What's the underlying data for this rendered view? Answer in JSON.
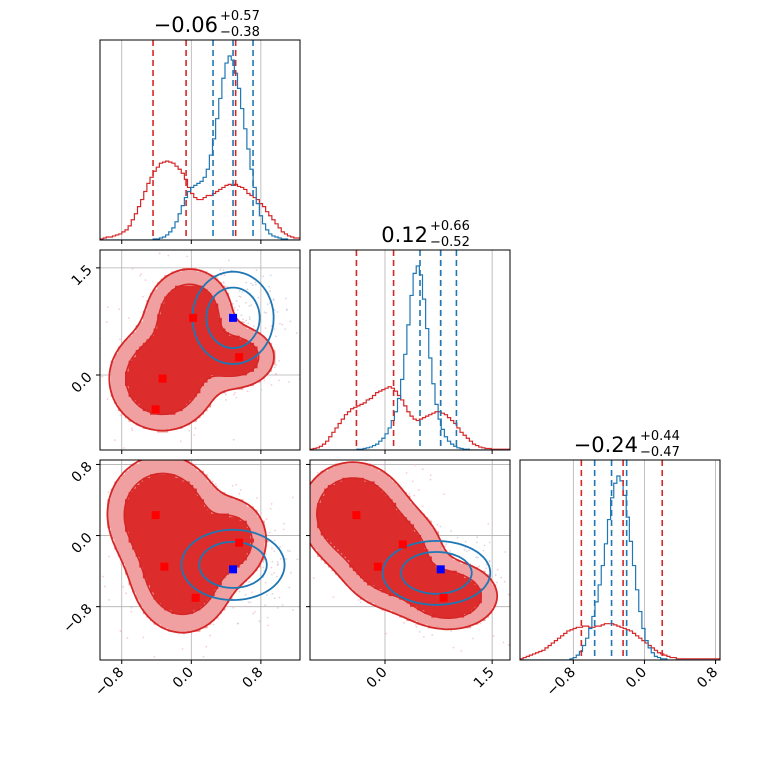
{
  "chart_data": {
    "type": "corner",
    "panels_per_side": 3,
    "grid": true,
    "colors": {
      "red": "#d62728",
      "blue": "#1f77b4",
      "red_fill_outer": "#f0a0a0",
      "red_fill_inner": "#dd2c2c",
      "marker_blue": "#0000ff",
      "marker_red": "#ff0000",
      "frame": "#000000"
    },
    "parameters": [
      {
        "range": [
          -1.05,
          1.25
        ],
        "ticks": [
          "−0.8",
          "0.0",
          "0.8"
        ],
        "tick_values": [
          -0.8,
          0.0,
          0.8
        ],
        "title": {
          "main": "−0.06",
          "sup": "+0.57",
          "sub": "−0.38"
        },
        "quantiles_red": [
          -0.44,
          -0.06,
          0.51
        ],
        "quantiles_blue": [
          0.25,
          0.48,
          0.71
        ]
      },
      {
        "range": [
          -1.05,
          1.75
        ],
        "ticks": [
          "0.0",
          "1.5"
        ],
        "tick_values": [
          0.0,
          1.5
        ],
        "left_ticks": [
          "1.5",
          "0.0"
        ],
        "left_tick_values": [
          1.5,
          0.0
        ],
        "title": {
          "main": "0.12",
          "sup": "+0.66",
          "sub": "−0.52"
        },
        "quantiles_red": [
          -0.4,
          0.12,
          0.78
        ],
        "quantiles_blue": [
          0.49,
          0.78,
          1.0
        ]
      },
      {
        "range": [
          -1.4,
          0.85
        ],
        "ticks": [
          "−0.8",
          "0.0",
          "0.8"
        ],
        "tick_values": [
          -0.8,
          0.0,
          0.8
        ],
        "left_ticks": [
          "0.8",
          "0.0",
          "−0.8"
        ],
        "left_tick_values": [
          0.8,
          0.0,
          -0.8
        ],
        "title": {
          "main": "−0.24",
          "sup": "+0.44",
          "sub": "−0.47"
        },
        "quantiles_red": [
          -0.71,
          -0.24,
          0.2
        ],
        "quantiles_blue": [
          -0.56,
          -0.37,
          -0.2
        ]
      }
    ],
    "marginals": [
      {
        "red": {
          "bins": [
            -1.05,
            1.25
          ],
          "density": [
            1,
            2,
            3,
            3,
            4,
            5,
            6,
            8,
            10,
            14,
            20,
            26,
            33,
            40,
            48,
            56,
            62,
            68,
            72,
            76,
            77,
            78,
            77,
            76,
            73,
            70,
            66,
            60,
            52,
            46,
            42,
            40,
            40,
            42,
            44,
            44,
            46,
            48,
            50,
            52,
            54,
            55,
            54,
            55,
            53,
            52,
            50,
            46,
            44,
            42,
            40,
            36,
            33,
            28,
            24,
            20,
            16,
            12,
            8,
            6,
            4,
            3,
            2,
            2
          ]
        },
        "blue": {
          "bins": [
            -1.05,
            1.25
          ],
          "density": [
            0,
            0,
            0,
            0,
            0,
            0,
            0,
            0,
            0,
            0,
            0,
            0,
            0,
            0,
            0,
            0,
            0,
            1,
            1,
            2,
            3,
            5,
            8,
            12,
            18,
            26,
            34,
            42,
            48,
            52,
            54,
            56,
            58,
            62,
            70,
            84,
            100,
            120,
            140,
            160,
            175,
            182,
            178,
            165,
            150,
            130,
            110,
            90,
            70,
            52,
            36,
            24,
            16,
            10,
            6,
            4,
            3,
            2,
            1,
            1,
            0,
            0,
            0,
            0
          ]
        }
      },
      {
        "red": {
          "bins": [
            -1.05,
            1.75
          ],
          "density": [
            1,
            2,
            3,
            5,
            8,
            12,
            18,
            24,
            30,
            36,
            42,
            48,
            52,
            56,
            58,
            60,
            62,
            64,
            68,
            70,
            74,
            78,
            80,
            82,
            84,
            86,
            84,
            80,
            74,
            68,
            60,
            52,
            46,
            42,
            40,
            42,
            44,
            46,
            48,
            50,
            52,
            52,
            50,
            48,
            44,
            40,
            36,
            30,
            24,
            20,
            16,
            12,
            8,
            6,
            4,
            3,
            2,
            2,
            1,
            1,
            1,
            1,
            1,
            1
          ]
        },
        "blue": {
          "bins": [
            -1.05,
            1.75
          ],
          "density": [
            0,
            0,
            0,
            0,
            0,
            0,
            0,
            0,
            0,
            0,
            0,
            0,
            0,
            0,
            0,
            1,
            1,
            2,
            3,
            4,
            6,
            8,
            12,
            16,
            22,
            30,
            40,
            52,
            70,
            96,
            130,
            170,
            210,
            240,
            250,
            238,
            205,
            165,
            125,
            90,
            62,
            42,
            28,
            18,
            12,
            8,
            5,
            3,
            2,
            1,
            1,
            0,
            0,
            0,
            0,
            0,
            0,
            0,
            0,
            0,
            0,
            0,
            0,
            0
          ]
        }
      },
      {
        "red": {
          "bins": [
            -1.4,
            0.85
          ],
          "density": [
            1,
            2,
            3,
            4,
            5,
            6,
            7,
            8,
            10,
            12,
            14,
            16,
            18,
            20,
            22,
            24,
            25,
            26,
            27,
            27,
            28,
            28,
            27,
            27,
            28,
            28,
            29,
            30,
            30,
            30,
            29,
            28,
            27,
            26,
            25,
            24,
            22,
            20,
            18,
            16,
            14,
            12,
            10,
            8,
            6,
            5,
            4,
            3,
            2,
            2,
            1,
            1,
            1,
            1,
            1,
            1,
            1,
            1,
            1,
            1,
            1,
            1,
            1,
            1
          ]
        },
        "blue": {
          "bins": [
            -1.4,
            0.85
          ],
          "density": [
            0,
            0,
            0,
            0,
            0,
            0,
            0,
            0,
            0,
            0,
            0,
            0,
            0,
            0,
            0,
            0,
            1,
            2,
            4,
            7,
            12,
            18,
            26,
            36,
            48,
            62,
            78,
            96,
            116,
            134,
            146,
            152,
            148,
            136,
            118,
            98,
            78,
            58,
            40,
            26,
            16,
            10,
            6,
            3,
            2,
            1,
            1,
            0,
            0,
            0,
            0,
            0,
            0,
            0,
            0,
            0,
            0,
            0,
            0,
            0,
            0,
            0,
            0,
            0
          ]
        }
      }
    ],
    "joint": [
      {
        "x_param": 0,
        "y_param": 1,
        "red_modes": [
          {
            "x": -0.33,
            "y": -0.05,
            "sx": 0.32,
            "sy": 0.38,
            "w": 1.0
          },
          {
            "x": -0.02,
            "y": 0.85,
            "sx": 0.26,
            "sy": 0.34,
            "w": 0.9
          },
          {
            "x": 0.52,
            "y": 0.25,
            "sx": 0.25,
            "sy": 0.24,
            "w": 0.7
          }
        ],
        "blue_modes": [
          {
            "x": 0.48,
            "y": 0.8,
            "sx": 0.26,
            "sy": 0.36,
            "w": 1.0
          }
        ],
        "blue_markers": [
          {
            "x": 0.48,
            "y": 0.8
          }
        ],
        "red_markers": [
          {
            "x": -0.33,
            "y": -0.05
          },
          {
            "x": -0.41,
            "y": -0.48
          },
          {
            "x": 0.02,
            "y": 0.8
          },
          {
            "x": 0.55,
            "y": 0.25
          }
        ]
      },
      {
        "x_param": 0,
        "y_param": 2,
        "red_modes": [
          {
            "x": -0.33,
            "y": 0.25,
            "sx": 0.33,
            "sy": 0.34,
            "w": 1.0
          },
          {
            "x": -0.1,
            "y": -0.45,
            "sx": 0.3,
            "sy": 0.34,
            "w": 0.95
          },
          {
            "x": 0.5,
            "y": -0.05,
            "sx": 0.22,
            "sy": 0.26,
            "w": 0.6
          }
        ],
        "blue_modes": [
          {
            "x": 0.48,
            "y": -0.33,
            "sx": 0.33,
            "sy": 0.22,
            "w": 1.0
          }
        ],
        "blue_markers": [
          {
            "x": 0.48,
            "y": -0.38
          }
        ],
        "red_markers": [
          {
            "x": -0.41,
            "y": 0.23
          },
          {
            "x": -0.31,
            "y": -0.35
          },
          {
            "x": 0.05,
            "y": -0.7
          },
          {
            "x": 0.55,
            "y": -0.08
          }
        ]
      },
      {
        "x_param": 1,
        "y_param": 2,
        "red_modes": [
          {
            "x": -0.45,
            "y": 0.25,
            "sx": 0.38,
            "sy": 0.3,
            "w": 1.0
          },
          {
            "x": 0.1,
            "y": -0.25,
            "sx": 0.38,
            "sy": 0.3,
            "w": 0.9
          },
          {
            "x": 0.9,
            "y": -0.68,
            "sx": 0.36,
            "sy": 0.2,
            "w": 0.9
          }
        ],
        "blue_modes": [
          {
            "x": 0.72,
            "y": -0.42,
            "sx": 0.42,
            "sy": 0.2,
            "w": 1.0
          }
        ],
        "blue_markers": [
          {
            "x": 0.78,
            "y": -0.38
          }
        ],
        "red_markers": [
          {
            "x": -0.4,
            "y": 0.23
          },
          {
            "x": -0.1,
            "y": -0.35
          },
          {
            "x": 0.25,
            "y": -0.1
          },
          {
            "x": 0.82,
            "y": -0.7
          }
        ]
      }
    ]
  }
}
